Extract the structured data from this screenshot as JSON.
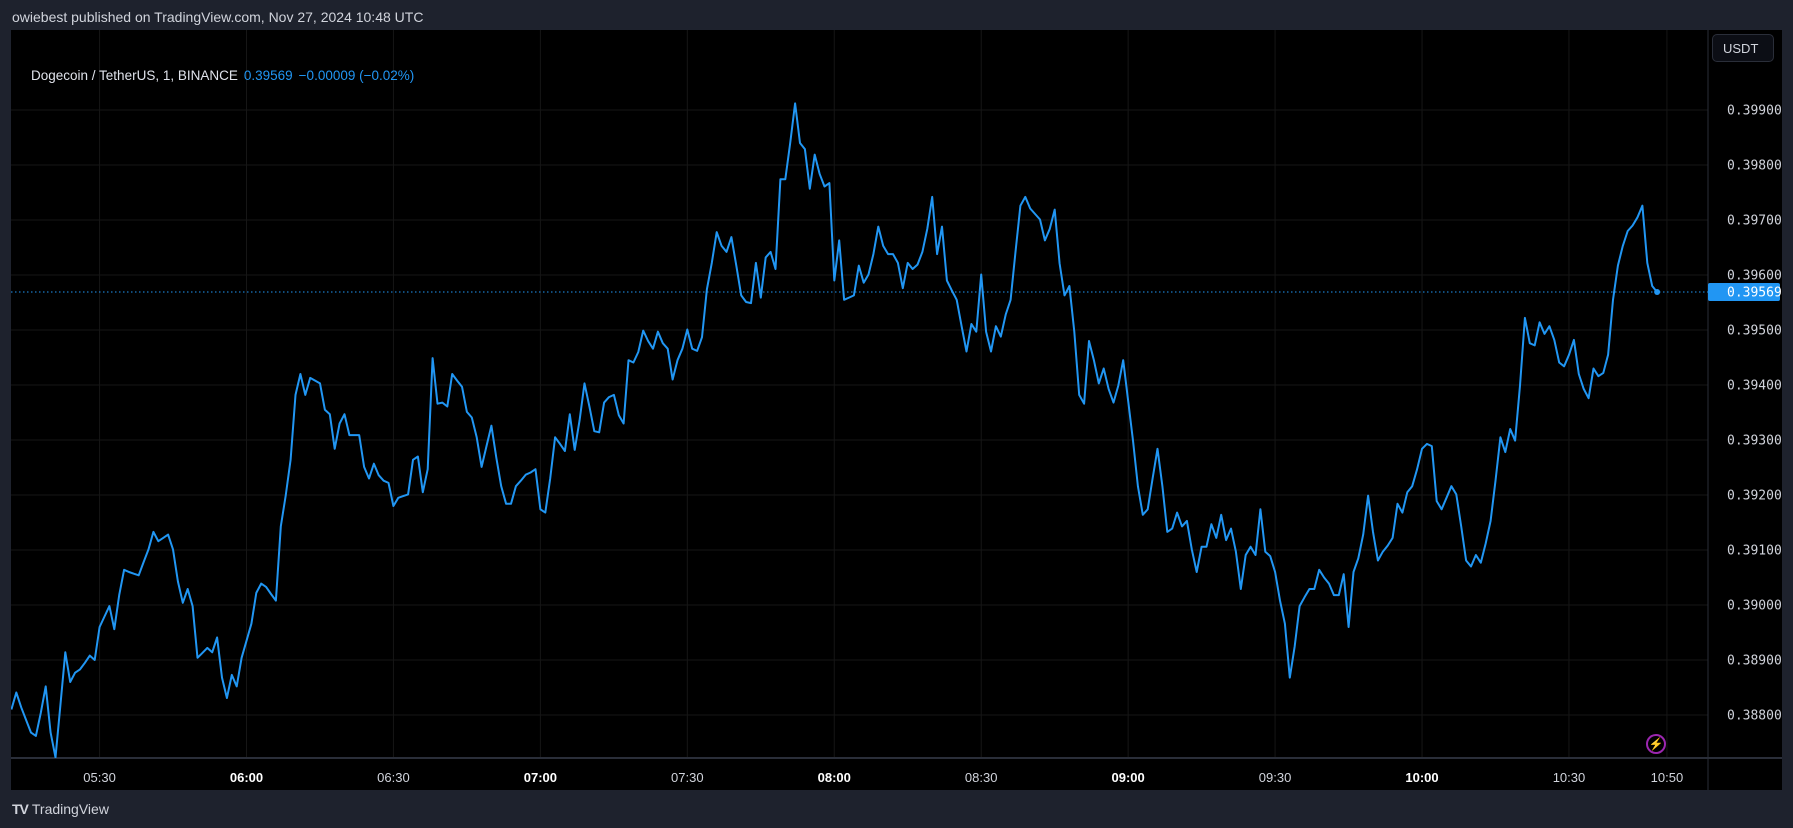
{
  "header": {
    "published": "owiebest published on TradingView.com, Nov 27, 2024 10:48 UTC"
  },
  "legend": {
    "symbol": "Dogecoin / TetherUS, 1, BINANCE",
    "last": "0.39569",
    "change": "−0.00009 (−0.02%)"
  },
  "currency_button": "USDT",
  "footer": {
    "brand": "TradingView",
    "logo": "TV"
  },
  "icons": {
    "alert": "lightning-icon"
  },
  "colors": {
    "line": "#2196f3",
    "background": "#000000",
    "frame": "#1e222d",
    "alert": "#9c27b0"
  },
  "chart_data": {
    "type": "line",
    "title": "",
    "xlabel": "",
    "ylabel": "",
    "start_time": "05:12",
    "interval_minutes": 1,
    "last_price_label": "0.39569",
    "ylim": [
      0.38725,
      0.4005
    ],
    "grid": true,
    "y_ticks": [
      "0.38800",
      "0.38900",
      "0.39000",
      "0.39100",
      "0.39200",
      "0.39300",
      "0.39400",
      "0.39500",
      "0.39600",
      "0.39700",
      "0.39800",
      "0.39900"
    ],
    "x_ticks": [
      {
        "label": "05:30",
        "bold": false
      },
      {
        "label": "06:00",
        "bold": true
      },
      {
        "label": "06:30",
        "bold": false
      },
      {
        "label": "07:00",
        "bold": true
      },
      {
        "label": "07:30",
        "bold": false
      },
      {
        "label": "08:00",
        "bold": true
      },
      {
        "label": "08:30",
        "bold": false
      },
      {
        "label": "09:00",
        "bold": true
      },
      {
        "label": "09:30",
        "bold": false
      },
      {
        "label": "10:00",
        "bold": true
      },
      {
        "label": "10:30",
        "bold": false
      },
      {
        "label": "10:50",
        "bold": false
      }
    ],
    "values": [
      0.3881,
      0.38841,
      0.38814,
      0.38791,
      0.38768,
      0.38762,
      0.38804,
      0.38852,
      0.38768,
      0.38723,
      0.38818,
      0.38914,
      0.3886,
      0.38877,
      0.38883,
      0.38895,
      0.38908,
      0.389,
      0.3896,
      0.38979,
      0.38998,
      0.38956,
      0.39018,
      0.39064,
      0.3906,
      0.39057,
      0.39054,
      0.39078,
      0.39101,
      0.39133,
      0.39116,
      0.39122,
      0.39128,
      0.39101,
      0.39043,
      0.39004,
      0.39029,
      0.38998,
      0.38904,
      0.38913,
      0.38922,
      0.38914,
      0.38941,
      0.38868,
      0.38831,
      0.38873,
      0.38852,
      0.38904,
      0.38935,
      0.38966,
      0.39022,
      0.39039,
      0.39033,
      0.3902,
      0.39008,
      0.39143,
      0.39199,
      0.39264,
      0.39382,
      0.3942,
      0.39382,
      0.39413,
      0.39408,
      0.39403,
      0.39355,
      0.39347,
      0.39284,
      0.3933,
      0.39347,
      0.39309,
      0.39309,
      0.39309,
      0.39251,
      0.3923,
      0.39257,
      0.39236,
      0.39226,
      0.39222,
      0.3918,
      0.39195,
      0.39198,
      0.39201,
      0.39264,
      0.3927,
      0.39205,
      0.39247,
      0.39449,
      0.39366,
      0.39368,
      0.39361,
      0.3942,
      0.39408,
      0.39397,
      0.39351,
      0.39341,
      0.39305,
      0.39251,
      0.39289,
      0.39326,
      0.39268,
      0.39216,
      0.39184,
      0.39184,
      0.39216,
      0.39226,
      0.39237,
      0.39241,
      0.39247,
      0.39174,
      0.39168,
      0.3923,
      0.39305,
      0.39293,
      0.3928,
      0.39347,
      0.39282,
      0.39336,
      0.39403,
      0.39361,
      0.39316,
      0.39314,
      0.39368,
      0.39378,
      0.39382,
      0.39345,
      0.3933,
      0.39445,
      0.39441,
      0.3946,
      0.39499,
      0.3948,
      0.39466,
      0.39497,
      0.39476,
      0.39466,
      0.3941,
      0.39445,
      0.39466,
      0.39501,
      0.39466,
      0.39462,
      0.39487,
      0.39574,
      0.39622,
      0.39678,
      0.39653,
      0.39642,
      0.39669,
      0.39617,
      0.39563,
      0.39551,
      0.39549,
      0.39622,
      0.39559,
      0.39632,
      0.39642,
      0.39611,
      0.39774,
      0.39774,
      0.3984,
      0.39912,
      0.3984,
      0.39829,
      0.39757,
      0.39819,
      0.39784,
      0.39761,
      0.39767,
      0.3959,
      0.39663,
      0.39555,
      0.39559,
      0.39563,
      0.39617,
      0.39586,
      0.39601,
      0.39638,
      0.39688,
      0.39653,
      0.39638,
      0.39638,
      0.39622,
      0.39576,
      0.39622,
      0.39611,
      0.39619,
      0.39642,
      0.39684,
      0.39742,
      0.39638,
      0.39688,
      0.3959,
      0.39572,
      0.39555,
      0.39507,
      0.39461,
      0.39511,
      0.39497,
      0.39601,
      0.39497,
      0.39461,
      0.39507,
      0.39488,
      0.39528,
      0.39555,
      0.39642,
      0.39726,
      0.39742,
      0.39721,
      0.39711,
      0.39701,
      0.39663,
      0.39684,
      0.39719,
      0.39621,
      0.39563,
      0.3958,
      0.39497,
      0.39382,
      0.39366,
      0.3948,
      0.39445,
      0.39403,
      0.3943,
      0.39393,
      0.39368,
      0.39399,
      0.39445,
      0.39372,
      0.39299,
      0.39216,
      0.39164,
      0.39174,
      0.3923,
      0.39284,
      0.39216,
      0.39133,
      0.39139,
      0.39168,
      0.39143,
      0.39153,
      0.39101,
      0.3906,
      0.39106,
      0.39106,
      0.39147,
      0.39122,
      0.39164,
      0.39118,
      0.39139,
      0.39097,
      0.39029,
      0.39091,
      0.39106,
      0.39091,
      0.39174,
      0.39097,
      0.39089,
      0.3906,
      0.39008,
      0.38966,
      0.38868,
      0.38925,
      0.38998,
      0.39014,
      0.39029,
      0.39029,
      0.39064,
      0.3905,
      0.39039,
      0.39018,
      0.39018,
      0.39056,
      0.3896,
      0.3906,
      0.39085,
      0.39128,
      0.39199,
      0.39133,
      0.39081,
      0.39097,
      0.39108,
      0.39122,
      0.39184,
      0.39168,
      0.39205,
      0.39216,
      0.39247,
      0.39284,
      0.39293,
      0.39289,
      0.39189,
      0.39174,
      0.39195,
      0.39216,
      0.39201,
      0.39143,
      0.39081,
      0.3907,
      0.39091,
      0.39077,
      0.39112,
      0.39153,
      0.39226,
      0.39305,
      0.39278,
      0.3932,
      0.39299,
      0.39399,
      0.39522,
      0.39476,
      0.39472,
      0.39514,
      0.39493,
      0.39507,
      0.39482,
      0.39441,
      0.39434,
      0.39455,
      0.39482,
      0.3942,
      0.39393,
      0.39376,
      0.3943,
      0.39416,
      0.39422,
      0.39455,
      0.39555,
      0.39617,
      0.39653,
      0.3968,
      0.3969,
      0.39705,
      0.39726,
      0.39622,
      0.3958,
      0.39569
    ]
  }
}
